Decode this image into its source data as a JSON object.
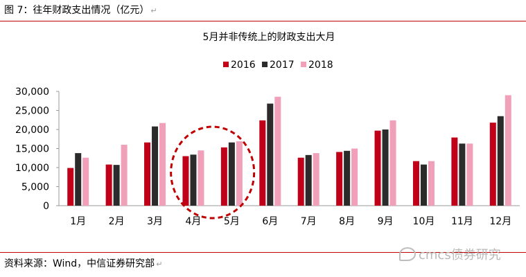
{
  "figure_caption": "图 7：往年财政支出情况（亿元）",
  "source_note": "资料来源：Wind，中信证券研究部",
  "watermark": "cmcs债券研究",
  "colors": {
    "s2016": "#c00018",
    "s2017": "#2b2b2b",
    "s2018": "#f0a0b8",
    "rule": "#c00000",
    "circle": "#c00000"
  },
  "chart_data": {
    "type": "bar",
    "title": "5月并非传统上的财政支出大月",
    "categories": [
      "1月",
      "2月",
      "3月",
      "4月",
      "5月",
      "6月",
      "7月",
      "8月",
      "9月",
      "10月",
      "11月",
      "12月"
    ],
    "series": [
      {
        "name": "2016",
        "values": [
          9900,
          10800,
          16600,
          13000,
          15300,
          22400,
          12600,
          14100,
          19700,
          11700,
          17900,
          21800
        ]
      },
      {
        "name": "2017",
        "values": [
          13800,
          10700,
          20800,
          13400,
          16600,
          26800,
          13300,
          14400,
          20000,
          10800,
          16300,
          23500
        ]
      },
      {
        "name": "2018",
        "values": [
          12600,
          16000,
          21700,
          14500,
          16900,
          28600,
          13800,
          15000,
          22400,
          11700,
          16300,
          29000
        ]
      }
    ],
    "ylim": [
      0,
      30000
    ],
    "yticks": [
      "30,000",
      "25,000",
      "20,000",
      "15,000",
      "10,000",
      "5,000",
      "0"
    ],
    "legend_position": "top-center",
    "grid": false,
    "annotation": "dashed circle around April and May"
  }
}
